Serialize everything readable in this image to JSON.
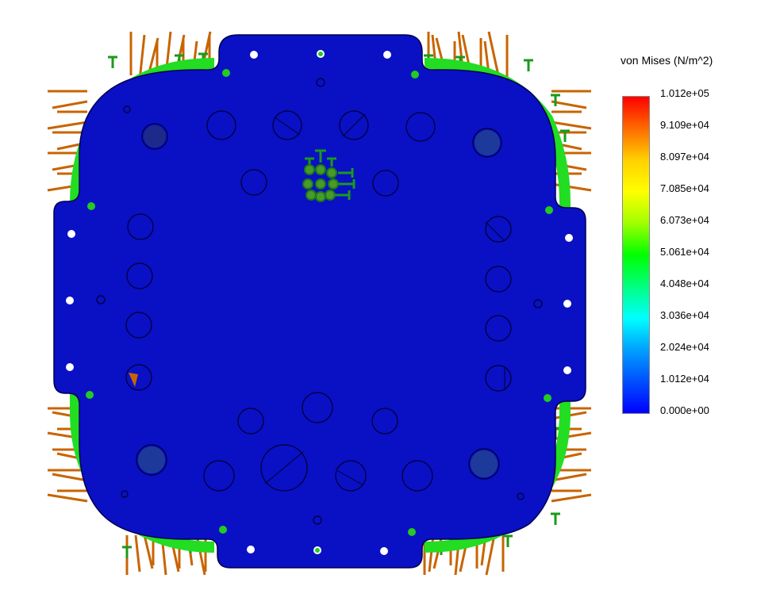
{
  "legend": {
    "title": "von Mises (N/m^2)",
    "ticks": [
      "1.012e+05",
      "9.109e+04",
      "8.097e+04",
      "7.085e+04",
      "6.073e+04",
      "5.061e+04",
      "4.048e+04",
      "3.036e+04",
      "2.024e+04",
      "1.012e+04",
      "0.000e+00"
    ]
  },
  "colors": {
    "plate": "#0a10c4",
    "plate_outline": "#000050",
    "fixture_green": "#1a9a1a",
    "load_orange": "#c86400",
    "edge_green": "#22dd22"
  }
}
